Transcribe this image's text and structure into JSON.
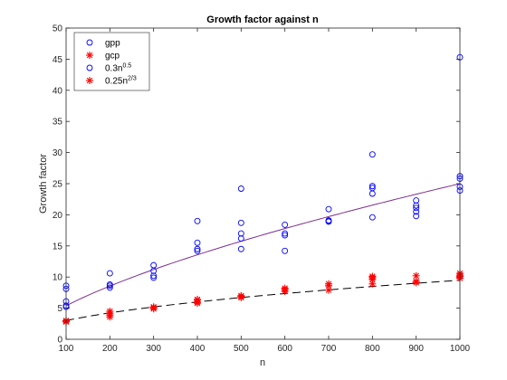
{
  "chart_data": {
    "type": "scatter",
    "title": "Growth factor against n",
    "xlabel": "n",
    "ylabel": "Growth factor",
    "xlim": [
      100,
      1000
    ],
    "ylim": [
      0,
      50
    ],
    "xticks": [
      100,
      200,
      300,
      400,
      500,
      600,
      700,
      800,
      900,
      1000
    ],
    "yticks": [
      0,
      5,
      10,
      15,
      20,
      25,
      30,
      35,
      40,
      45,
      50
    ],
    "grid": false,
    "legend_position": "top-left",
    "series": [
      {
        "name": "gpp",
        "kind": "scatter",
        "marker": "circle",
        "color": "#0000ff",
        "points": [
          [
            100,
            5.2
          ],
          [
            100,
            5.4
          ],
          [
            100,
            6.1
          ],
          [
            100,
            8.1
          ],
          [
            100,
            8.6
          ],
          [
            200,
            8.3
          ],
          [
            200,
            8.6
          ],
          [
            200,
            8.8
          ],
          [
            200,
            10.6
          ],
          [
            300,
            9.9
          ],
          [
            300,
            10.2
          ],
          [
            300,
            11.0
          ],
          [
            300,
            11.9
          ],
          [
            400,
            14.2
          ],
          [
            400,
            14.5
          ],
          [
            400,
            15.5
          ],
          [
            400,
            19.0
          ],
          [
            500,
            14.5
          ],
          [
            500,
            16.2
          ],
          [
            500,
            17.0
          ],
          [
            500,
            18.7
          ],
          [
            500,
            24.2
          ],
          [
            600,
            14.2
          ],
          [
            600,
            16.7
          ],
          [
            600,
            17.0
          ],
          [
            600,
            18.4
          ],
          [
            700,
            18.9
          ],
          [
            700,
            19.0
          ],
          [
            700,
            19.1
          ],
          [
            700,
            20.9
          ],
          [
            800,
            19.6
          ],
          [
            800,
            23.4
          ],
          [
            800,
            24.3
          ],
          [
            800,
            24.6
          ],
          [
            800,
            29.7
          ],
          [
            900,
            19.8
          ],
          [
            900,
            20.5
          ],
          [
            900,
            21.1
          ],
          [
            900,
            21.5
          ],
          [
            900,
            22.3
          ],
          [
            1000,
            23.9
          ],
          [
            1000,
            24.5
          ],
          [
            1000,
            25.8
          ],
          [
            1000,
            26.2
          ],
          [
            1000,
            45.3
          ]
        ]
      },
      {
        "name": "gcp",
        "kind": "scatter",
        "marker": "asterisk",
        "color": "#ff0000",
        "points": [
          [
            100,
            2.8
          ],
          [
            100,
            2.9
          ],
          [
            100,
            3.0
          ],
          [
            200,
            3.6
          ],
          [
            200,
            3.9
          ],
          [
            200,
            4.2
          ],
          [
            200,
            4.5
          ],
          [
            300,
            4.9
          ],
          [
            300,
            5.1
          ],
          [
            300,
            5.2
          ],
          [
            400,
            5.8
          ],
          [
            400,
            6.0
          ],
          [
            400,
            6.3
          ],
          [
            400,
            6.4
          ],
          [
            500,
            6.7
          ],
          [
            500,
            6.9
          ],
          [
            500,
            7.0
          ],
          [
            600,
            7.7
          ],
          [
            600,
            8.0
          ],
          [
            600,
            8.2
          ],
          [
            700,
            7.9
          ],
          [
            700,
            8.6
          ],
          [
            700,
            8.9
          ],
          [
            800,
            8.9
          ],
          [
            800,
            9.6
          ],
          [
            800,
            9.9
          ],
          [
            800,
            10.1
          ],
          [
            900,
            9.1
          ],
          [
            900,
            9.3
          ],
          [
            900,
            10.2
          ],
          [
            1000,
            9.8
          ],
          [
            1000,
            10.1
          ],
          [
            1000,
            10.3
          ],
          [
            1000,
            10.6
          ]
        ]
      },
      {
        "name": "0.3n^0.5",
        "label_base": "0.3n",
        "label_exp": "0.5",
        "kind": "line",
        "dash": "dashed",
        "color": "#000000",
        "formula": {
          "coef": 0.3,
          "exp": 0.5
        }
      },
      {
        "name": "0.25n^2/3",
        "label_base": "0.25n",
        "label_exp": "2/3",
        "kind": "line",
        "dash": "solid",
        "color": "#7e2f8e",
        "formula": {
          "coef": 0.25,
          "exp": 0.6666667
        }
      }
    ],
    "legend": [
      {
        "series": 0,
        "marker": "circle",
        "color": "#0000ff"
      },
      {
        "series": 1,
        "marker": "asterisk",
        "color": "#ff0000"
      },
      {
        "series": 2,
        "marker": "circle",
        "color": "#0000ff"
      },
      {
        "series": 3,
        "marker": "asterisk",
        "color": "#ff0000"
      }
    ]
  }
}
